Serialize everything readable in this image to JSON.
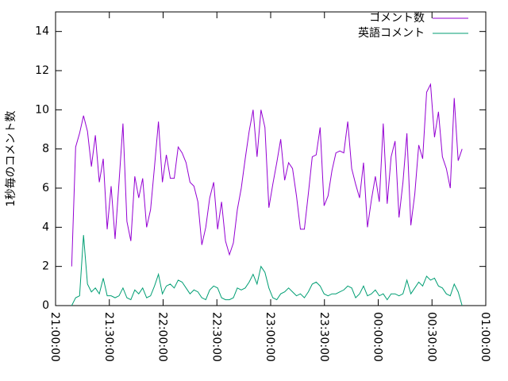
{
  "chart_data": {
    "type": "line",
    "ylabel": "1秒毎のコメント数",
    "xlim": [
      0,
      240
    ],
    "xticks": [
      {
        "value": 0,
        "label": "21:00:00"
      },
      {
        "value": 30,
        "label": "21:30:00"
      },
      {
        "value": 60,
        "label": "22:00:00"
      },
      {
        "value": 90,
        "label": "22:30:00"
      },
      {
        "value": 120,
        "label": "23:00:00"
      },
      {
        "value": 150,
        "label": "23:30:00"
      },
      {
        "value": 180,
        "label": "00:00:00"
      },
      {
        "value": 210,
        "label": "00:30:00"
      },
      {
        "value": 240,
        "label": "01:00:00"
      }
    ],
    "ylim": [
      0,
      15
    ],
    "yticks": [
      0,
      2,
      4,
      6,
      8,
      10,
      12,
      14
    ],
    "legend": "top-right",
    "x": [
      9,
      11.2,
      13.4,
      15.6,
      17.8,
      20,
      22.2,
      24.4,
      26.6,
      28.8,
      31,
      33.2,
      35.4,
      37.6,
      39.8,
      42,
      44.2,
      46.4,
      48.6,
      50.8,
      53,
      55.2,
      57.4,
      59.6,
      61.8,
      64,
      66.2,
      68.4,
      70.6,
      72.8,
      75,
      77.2,
      79.4,
      81.6,
      83.8,
      86,
      88.2,
      90.4,
      92.6,
      94.8,
      97,
      99.2,
      101.4,
      103.6,
      105.8,
      108,
      110.2,
      112.4,
      114.6,
      116.8,
      119,
      121.2,
      123.4,
      125.6,
      127.8,
      130,
      132.2,
      134.4,
      136.6,
      138.8,
      141,
      143.2,
      145.4,
      147.6,
      149.8,
      152,
      154.2,
      156.4,
      158.6,
      160.8,
      163,
      165.2,
      167.4,
      169.6,
      171.8,
      174,
      176.2,
      178.4,
      180.6,
      182.8,
      185,
      187.2,
      189.4,
      191.6,
      193.8,
      196,
      198.2,
      200.4,
      202.6,
      204.8,
      207,
      209.2,
      211.4,
      213.6,
      215.8,
      218,
      220.2,
      222.4,
      224.6,
      226.8
    ],
    "series": [
      {
        "name": "コメント数",
        "color": "#9400d3",
        "values": [
          2.0,
          8.1,
          8.8,
          9.7,
          8.9,
          7.1,
          8.7,
          6.3,
          7.5,
          3.9,
          6.1,
          3.4,
          6.3,
          9.3,
          4.3,
          3.3,
          6.6,
          5.5,
          6.5,
          4.0,
          4.9,
          7.1,
          9.4,
          6.3,
          7.7,
          6.5,
          6.5,
          8.1,
          7.8,
          7.3,
          6.3,
          6.1,
          5.3,
          3.1,
          4.0,
          5.5,
          6.3,
          3.9,
          5.3,
          3.3,
          2.6,
          3.2,
          4.9,
          6.0,
          7.5,
          8.9,
          10.0,
          7.6,
          10.0,
          9.1,
          5.0,
          6.2,
          7.3,
          8.5,
          6.4,
          7.3,
          7.0,
          5.6,
          3.9,
          3.9,
          5.7,
          7.6,
          7.7,
          9.1,
          5.1,
          5.6,
          6.9,
          7.8,
          7.9,
          7.8,
          9.4,
          7.0,
          6.2,
          5.5,
          7.3,
          4.0,
          5.4,
          6.6,
          5.3,
          9.3,
          5.2,
          7.6,
          8.4,
          4.5,
          6.3,
          8.8,
          4.1,
          5.7,
          8.2,
          7.5,
          10.9,
          11.3,
          8.6,
          9.9,
          7.6,
          7.0,
          6.0,
          10.6,
          7.4,
          8.0
        ]
      },
      {
        "name": "英語コメント",
        "color": "#009e73",
        "values": [
          0,
          0.4,
          0.5,
          3.6,
          1.1,
          0.7,
          0.9,
          0.6,
          1.4,
          0.5,
          0.5,
          0.4,
          0.5,
          0.9,
          0.4,
          0.3,
          0.8,
          0.6,
          0.9,
          0.4,
          0.5,
          1.0,
          1.6,
          0.6,
          1.0,
          1.1,
          0.9,
          1.3,
          1.2,
          0.9,
          0.6,
          0.8,
          0.7,
          0.4,
          0.3,
          0.8,
          1.0,
          0.9,
          0.4,
          0.3,
          0.3,
          0.4,
          0.9,
          0.8,
          0.9,
          1.2,
          1.6,
          1.1,
          2.0,
          1.7,
          0.9,
          0.4,
          0.3,
          0.6,
          0.7,
          0.9,
          0.7,
          0.5,
          0.6,
          0.4,
          0.7,
          1.1,
          1.2,
          1.0,
          0.6,
          0.5,
          0.6,
          0.6,
          0.7,
          0.8,
          1.0,
          0.9,
          0.4,
          0.6,
          1.0,
          0.5,
          0.6,
          0.8,
          0.5,
          0.6,
          0.3,
          0.6,
          0.6,
          0.5,
          0.6,
          1.3,
          0.6,
          0.9,
          1.2,
          1.0,
          1.5,
          1.3,
          1.4,
          1.0,
          0.9,
          0.6,
          0.5,
          1.1,
          0.7,
          0.0
        ]
      }
    ]
  }
}
